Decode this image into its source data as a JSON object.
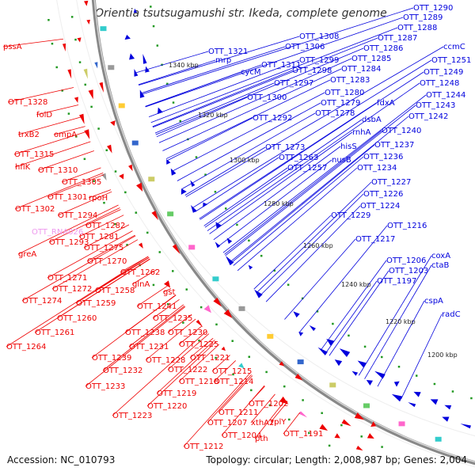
{
  "title": "Orientia tsutsugamushi str. Ikeda, complete genome",
  "footer": {
    "accession": "Accession: NC_010793",
    "stats": "Topology: circular; Length: 2,008,987 bp; Genes: 2,004"
  },
  "colors": {
    "plus_strand": "#0000dd",
    "minus_strand": "#ee0000",
    "rna": "#ee99ee",
    "backbone": "#888888",
    "tick": "#229922"
  },
  "scale_labels": [
    "1340 kbp",
    "1320 kbp",
    "1300 kbp",
    "1280 kbp",
    "1260 kbp",
    "1240 kbp",
    "1220 kbp",
    "1200 kbp"
  ],
  "right_labels": [
    "OTT_1290",
    "OTT_1289",
    "OTT_1288",
    "OTT_1287",
    "OTT_1286",
    "OTT_1285",
    "OTT_1284",
    "OTT_1283",
    "OTT_1308",
    "OTT_1306",
    "OTT_1321",
    "mrp",
    "OTT_1311",
    "cycM",
    "OTT_1299",
    "OTT_1298",
    "OTT_1297",
    "OTT_1300",
    "OTT_1280",
    "OTT_1279",
    "OTT_1278",
    "OTT_1292",
    "ccmC",
    "OTT_1251",
    "OTT_1249",
    "OTT_1248",
    "OTT_1244",
    "OTT_1243",
    "OTT_1242",
    "fdxA",
    "dsbA",
    "rnhA",
    "OTT_1240",
    "hisS",
    "OTT_1237",
    "OTT_1273",
    "OTT_1263",
    "nusB",
    "OTT_1257",
    "OTT_1236",
    "OTT_1234",
    "OTT_1227",
    "OTT_1226",
    "OTT_1224",
    "OTT_1229",
    "OTT_1216",
    "OTT_1217",
    "coxA",
    "OTT_1206",
    "ctaB",
    "OTT_1203",
    "OTT_1197",
    "cspA",
    "radC"
  ],
  "left_labels": [
    "pssA",
    "OTT_1328",
    "folD",
    "trxB2",
    "ompA",
    "OTT_1315",
    "hflK",
    "OTT_1310",
    "OTT_1305",
    "OTT_1301",
    "rpoH",
    "OTT_1302",
    "OTT_1294",
    "OTT_1282",
    "OTT_1281",
    "OTT_1293",
    "OTT_1275",
    "greA",
    "OTT_1270",
    "OTT_1262",
    "OTT_1271",
    "OTT_1272",
    "glnA",
    "OTT_1258",
    "OTT_1274",
    "OTT_1259",
    "gst",
    "OTT_1241",
    "OTT_1260",
    "OTT_1235",
    "OTT_1238",
    "OTT_1230",
    "OTT_1261",
    "OTT_1231",
    "OTT_1225",
    "OTT_1264",
    "OTT_1239",
    "OTT_1228",
    "OTT_1221",
    "OTT_1232",
    "OTT_1222",
    "OTT_1215",
    "OTT_1218",
    "OTT_1214",
    "OTT_1233",
    "OTT_1219",
    "OTT_1220",
    "OTT_1223",
    "OTT_1202",
    "OTT_1211",
    "OTT_1207",
    "xthA2",
    "rplY",
    "OTT_1204",
    "pth",
    "OTT_1191",
    "OTT_1212"
  ],
  "rna_labels": [
    "OTT_RNA026"
  ]
}
